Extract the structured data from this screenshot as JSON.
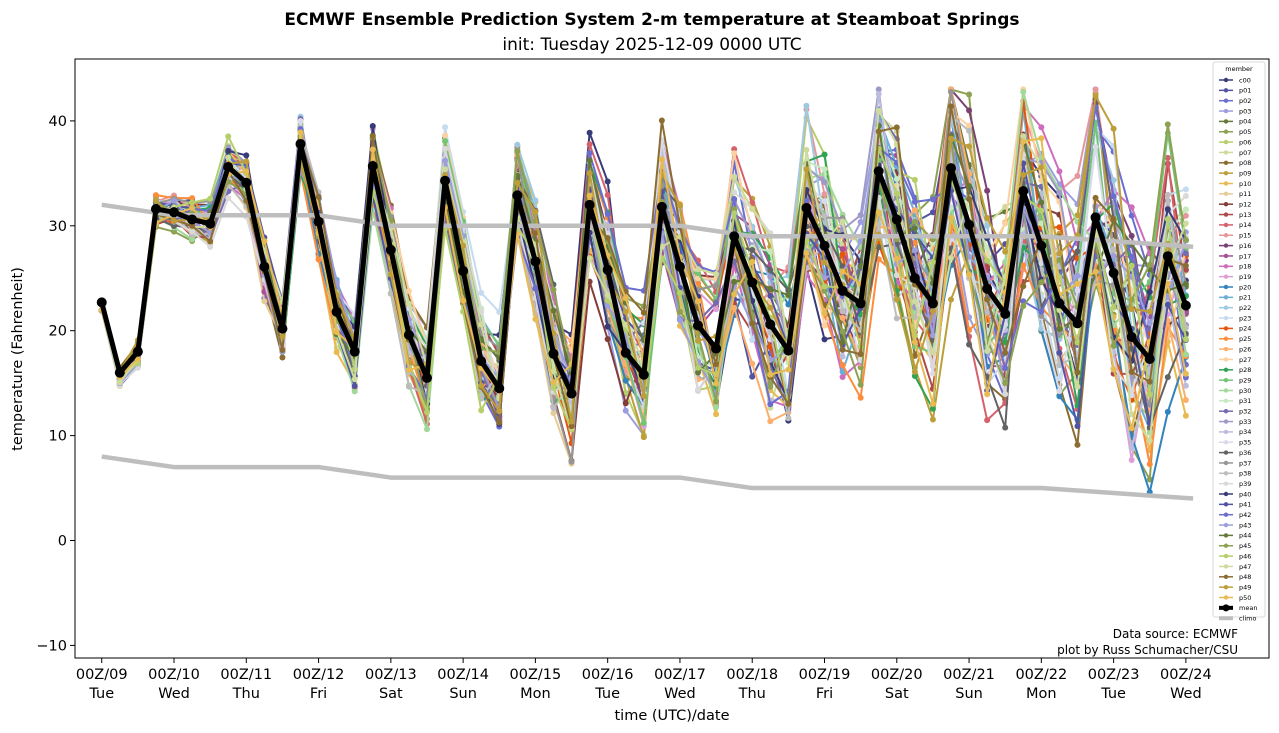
{
  "chart_data": {
    "type": "line",
    "title": "ECMWF Ensemble Prediction System 2-m temperature at Steamboat Springs",
    "subtitle": "init: Tuesday 2025-12-09 0000 UTC",
    "xlabel": "time (UTC)/date",
    "ylabel": "temperature (Fahrenheit)",
    "ylim": [
      -11.2,
      45.9
    ],
    "xlim_days": [
      -0.37,
      16.15
    ],
    "yticks": [
      -10,
      0,
      10,
      20,
      30,
      40
    ],
    "ytick_labels": [
      "−10",
      "0",
      "10",
      "20",
      "30",
      "40"
    ],
    "xticks": [
      {
        "day": 0,
        "line1": "00Z/09",
        "line2": "Tue"
      },
      {
        "day": 1,
        "line1": "00Z/10",
        "line2": "Wed"
      },
      {
        "day": 2,
        "line1": "00Z/11",
        "line2": "Thu"
      },
      {
        "day": 3,
        "line1": "00Z/12",
        "line2": "Fri"
      },
      {
        "day": 4,
        "line1": "00Z/13",
        "line2": "Sat"
      },
      {
        "day": 5,
        "line1": "00Z/14",
        "line2": "Sun"
      },
      {
        "day": 6,
        "line1": "00Z/15",
        "line2": "Mon"
      },
      {
        "day": 7,
        "line1": "00Z/16",
        "line2": "Tue"
      },
      {
        "day": 8,
        "line1": "00Z/17",
        "line2": "Wed"
      },
      {
        "day": 9,
        "line1": "00Z/18",
        "line2": "Thu"
      },
      {
        "day": 10,
        "line1": "00Z/19",
        "line2": "Fri"
      },
      {
        "day": 11,
        "line1": "00Z/20",
        "line2": "Sat"
      },
      {
        "day": 12,
        "line1": "00Z/21",
        "line2": "Sun"
      },
      {
        "day": 13,
        "line1": "00Z/22",
        "line2": "Mon"
      },
      {
        "day": 14,
        "line1": "00Z/23",
        "line2": "Tue"
      },
      {
        "day": 15,
        "line1": "00Z/24",
        "line2": "Wed"
      }
    ],
    "grid": false,
    "legend": {
      "title": "member",
      "placement": "right",
      "entries": [
        "c00",
        "p01",
        "p02",
        "p03",
        "p04",
        "p05",
        "p06",
        "p07",
        "p08",
        "p09",
        "p10",
        "p11",
        "p12",
        "p13",
        "p14",
        "p15",
        "p16",
        "p17",
        "p18",
        "p19",
        "p20",
        "p21",
        "p22",
        "p23",
        "p24",
        "p25",
        "p26",
        "p27",
        "p28",
        "p29",
        "p30",
        "p31",
        "p32",
        "p33",
        "p34",
        "p35",
        "p36",
        "p37",
        "p38",
        "p39",
        "p40",
        "p41",
        "p42",
        "p43",
        "p44",
        "p45",
        "p46",
        "p47",
        "p48",
        "p49",
        "p50",
        "mean",
        "climo"
      ]
    },
    "member_colors": [
      "#393b79",
      "#5254a3",
      "#6b6ecf",
      "#9c9ede",
      "#637939",
      "#8ca252",
      "#b5cf6b",
      "#cedb9c",
      "#8c6d31",
      "#bd9e39",
      "#e7ba52",
      "#e7cb94",
      "#843c39",
      "#ad494a",
      "#d6616b",
      "#e7969c",
      "#7b4173",
      "#a55194",
      "#ce6dbd",
      "#de9ed6",
      "#3182bd",
      "#6baed6",
      "#9ecae1",
      "#c6dbef",
      "#e6550d",
      "#fd8d3c",
      "#fdae6b",
      "#fdd0a2",
      "#31a354",
      "#74c476",
      "#a1d99b",
      "#c7e9c0",
      "#756bb1",
      "#9e9ac8",
      "#bcbddc",
      "#dadaeb",
      "#636363",
      "#969696",
      "#bdbdbd",
      "#d9d9d9",
      "#393b79",
      "#5254a3",
      "#6b6ecf",
      "#9c9ede",
      "#637939",
      "#8ca252",
      "#b5cf6b",
      "#cedb9c",
      "#8c6d31",
      "#bd9e39",
      "#e7ba52"
    ],
    "time_step_days": 0.25,
    "series": [
      {
        "name": "mean",
        "color": "#000000",
        "x_start_day": 0,
        "values": [
          22.7,
          16.0,
          18.0,
          31.6,
          31.3,
          30.6,
          30.2,
          35.6,
          34.1,
          26.1,
          20.2,
          37.8,
          30.4,
          21.8,
          18.0,
          35.7,
          27.7,
          19.6,
          15.5,
          34.3,
          25.7,
          17.1,
          14.5,
          32.9,
          26.6,
          17.8,
          14.0,
          32.0,
          25.8,
          17.9,
          15.8,
          31.8,
          26.1,
          20.5,
          18.3,
          29.0,
          24.6,
          20.6,
          18.1,
          31.7,
          28.1,
          23.8,
          22.6,
          35.2,
          30.6,
          25.0,
          22.6,
          35.5,
          30.1,
          24.0,
          21.6,
          33.3,
          28.1,
          22.6,
          20.7,
          30.8,
          25.5,
          19.4,
          17.3,
          27.1,
          22.4
        ]
      },
      {
        "name": "climo_high",
        "color": "#bebebe",
        "x_days": [
          0,
          1,
          3,
          4,
          8,
          9,
          13,
          15.1
        ],
        "values": [
          32,
          31,
          31,
          30,
          30,
          29,
          29,
          28
        ]
      },
      {
        "name": "climo_low",
        "color": "#bebebe",
        "x_days": [
          0,
          1,
          3,
          4,
          8,
          9,
          13,
          15.1
        ],
        "values": [
          8,
          7,
          7,
          6,
          6,
          5,
          5,
          4
        ]
      }
    ],
    "annotations": [
      "Data source: ECMWF",
      "plot by Russ Schumacher/CSU"
    ]
  }
}
